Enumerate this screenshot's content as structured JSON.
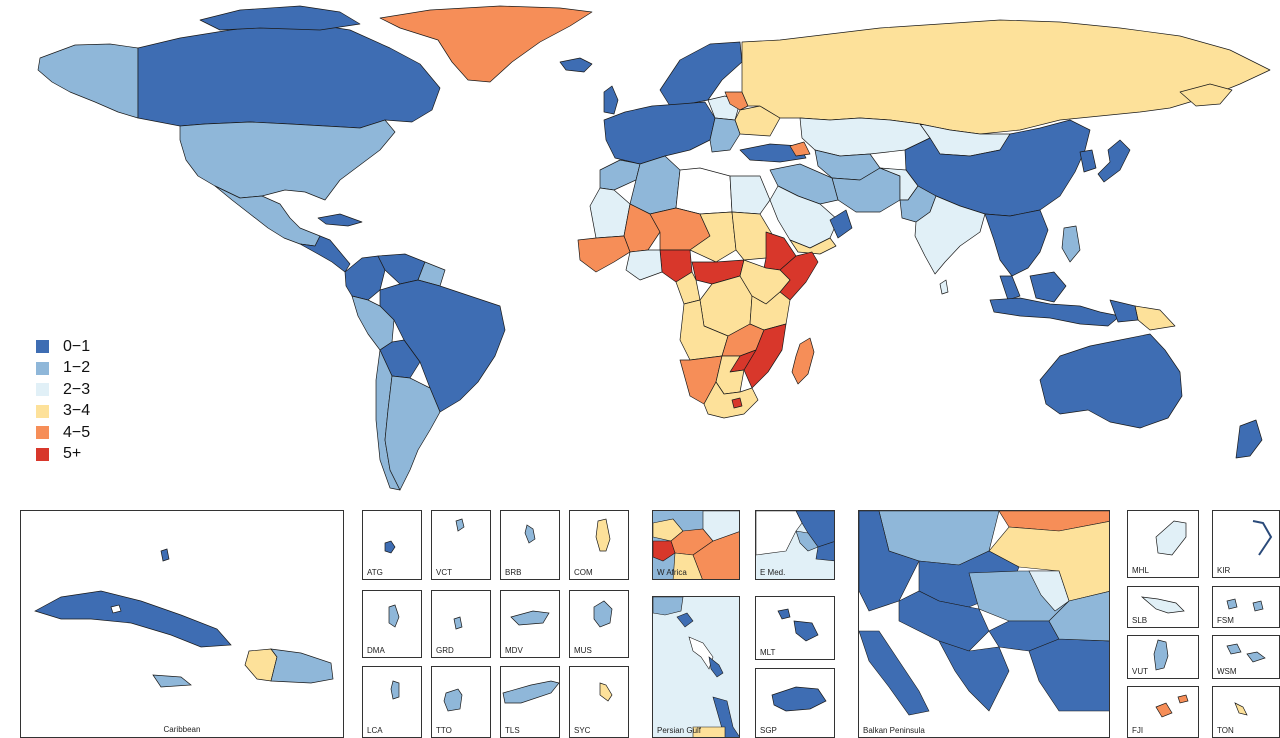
{
  "colors": {
    "c0": "#3e6db3",
    "c1": "#8fb7d9",
    "c2": "#e1f0f7",
    "c3": "#fde19a",
    "c4": "#f68e58",
    "c5": "#d8372b",
    "nodata": "#ffffff",
    "border": "#1a1a1a"
  },
  "legend": [
    {
      "label": "0−1",
      "color": "#3e6db3"
    },
    {
      "label": "1−2",
      "color": "#8fb7d9"
    },
    {
      "label": "2−3",
      "color": "#e1f0f7"
    },
    {
      "label": "3−4",
      "color": "#fde19a"
    },
    {
      "label": "4−5",
      "color": "#f68e58"
    },
    {
      "label": "5+",
      "color": "#d8372b"
    }
  ],
  "insets": {
    "caribbean": "Caribbean",
    "atg": "ATG",
    "vct": "VCT",
    "brb": "BRB",
    "com": "COM",
    "dma": "DMA",
    "grd": "GRD",
    "mdv": "MDV",
    "mus": "MUS",
    "lca": "LCA",
    "tto": "TTO",
    "tls": "TLS",
    "syc": "SYC",
    "wafrica": "W Africa",
    "emed": "E Med.",
    "pgulf": "Persian Gulf",
    "mlt": "MLT",
    "sgp": "SGP",
    "balkan": "Balkan Peninsula",
    "mhl": "MHL",
    "kir": "KIR",
    "slb": "SLB",
    "fsm": "FSM",
    "vut": "VUT",
    "wsm": "WSM",
    "fji": "FJI",
    "ton": "TON"
  }
}
